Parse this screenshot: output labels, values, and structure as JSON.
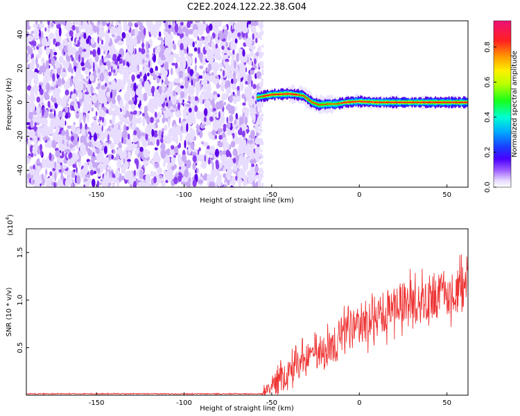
{
  "title": "C2E2.2024.122.22.38.G04",
  "chart_data": [
    {
      "type": "heatmap",
      "title": "C2E2.2024.122.22.38.G04",
      "xlabel": "Height of straight line (km)",
      "ylabel": "Frequency (Hz)",
      "xlim": [
        -190,
        62
      ],
      "ylim": [
        -50,
        48
      ],
      "x_ticks": [
        -150,
        -100,
        -50,
        0,
        50
      ],
      "y_ticks": [
        -40,
        -20,
        0,
        20,
        40
      ],
      "noise_region_x": [
        -190,
        -57
      ],
      "ridge": {
        "x": [
          -58,
          -50,
          -40,
          -32,
          -27,
          -23,
          -18,
          -13,
          -8,
          0,
          10,
          20,
          30,
          40,
          50,
          60
        ],
        "y": [
          3,
          4.5,
          5,
          4,
          0,
          -1.5,
          -1,
          -1,
          0,
          0.5,
          0,
          0,
          0,
          0,
          0,
          0
        ]
      },
      "colorbar": {
        "label": "Normalized spectral amplitude",
        "range": [
          0,
          0.95
        ],
        "ticks": [
          0.0,
          0.2,
          0.4,
          0.6,
          0.8
        ]
      },
      "colors": [
        "#e8ddff",
        "#c7a8f5",
        "#8a3ff0",
        "#5b00e6",
        "#1f2bff",
        "#00a8ff",
        "#00ffd0",
        "#2aff00",
        "#ccff00",
        "#ffd000",
        "#ff7700",
        "#ff1a1a",
        "#ee1177"
      ]
    },
    {
      "type": "line",
      "xlabel": "Height of straight line (km)",
      "ylabel": "SNR (10 * v/v)",
      "y_multiplier_label": "(x10",
      "y_multiplier_exp": "4",
      "xlim": [
        -190,
        62
      ],
      "ylim": [
        0,
        17500
      ],
      "x_ticks": [
        -150,
        -100,
        -50,
        0,
        50
      ],
      "y_ticks": [
        5000,
        10000,
        15000
      ],
      "y_tick_labels": [
        "0.5",
        "1.0",
        "1.5"
      ],
      "series": [
        {
          "color": "#ee3333",
          "segments": [
            {
              "x": [
                -190,
                -55
              ],
              "baseline": 150,
              "noise": 120
            },
            {
              "x": [
                -55,
                -48
              ],
              "start": 200,
              "end": 1500,
              "noise": 1500
            },
            {
              "x": [
                -48,
                -28
              ],
              "start": 1500,
              "end": 4500,
              "noise": 4000
            },
            {
              "x": [
                -28,
                -5
              ],
              "start": 4000,
              "end": 7000,
              "noise": 5500
            },
            {
              "x": [
                -5,
                20
              ],
              "start": 7000,
              "end": 9500,
              "noise": 5500
            },
            {
              "x": [
                20,
                62
              ],
              "start": 9500,
              "end": 11500,
              "noise": 6000
            }
          ]
        }
      ]
    }
  ]
}
